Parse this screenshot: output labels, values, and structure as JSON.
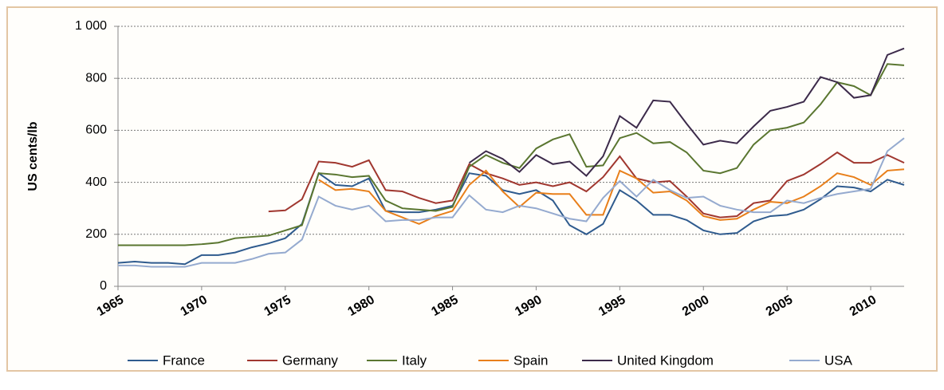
{
  "chart_data": {
    "type": "line",
    "y_label": "US cents/lb",
    "x": [
      1965,
      1966,
      1967,
      1968,
      1969,
      1970,
      1971,
      1972,
      1973,
      1974,
      1975,
      1976,
      1977,
      1978,
      1979,
      1980,
      1981,
      1982,
      1983,
      1984,
      1985,
      1986,
      1987,
      1988,
      1989,
      1990,
      1991,
      1992,
      1993,
      1994,
      1995,
      1996,
      1997,
      1998,
      1999,
      2000,
      2001,
      2002,
      2003,
      2004,
      2005,
      2006,
      2007,
      2008,
      2009,
      2010,
      2011,
      2012
    ],
    "xlim": [
      1965,
      2012
    ],
    "xticks": [
      1965,
      1970,
      1975,
      1980,
      1985,
      1990,
      1995,
      2000,
      2005,
      2010
    ],
    "ylim": [
      0,
      1000
    ],
    "yticks": [
      0,
      200,
      400,
      600,
      800,
      {
        "value": 1000,
        "label": "1 000"
      }
    ],
    "grid": true,
    "legend": "bottom",
    "series": [
      {
        "name": "France",
        "color": "#2f5b8e",
        "values": [
          90,
          95,
          90,
          90,
          85,
          120,
          120,
          130,
          150,
          165,
          185,
          240,
          435,
          390,
          385,
          415,
          290,
          285,
          285,
          295,
          310,
          435,
          425,
          370,
          355,
          370,
          330,
          235,
          200,
          240,
          370,
          330,
          275,
          275,
          255,
          215,
          200,
          205,
          250,
          270,
          275,
          295,
          335,
          385,
          380,
          365,
          410,
          390
        ]
      },
      {
        "name": "Germany",
        "color": "#a0372f",
        "values": [
          null,
          null,
          null,
          null,
          null,
          null,
          null,
          null,
          null,
          288,
          292,
          335,
          480,
          475,
          460,
          485,
          370,
          365,
          340,
          320,
          330,
          470,
          435,
          415,
          390,
          400,
          385,
          400,
          365,
          420,
          500,
          415,
          400,
          405,
          345,
          280,
          265,
          270,
          320,
          330,
          405,
          430,
          470,
          515,
          475,
          475,
          505,
          475
        ]
      },
      {
        "name": "Italy",
        "color": "#5a7630",
        "values": [
          158,
          158,
          158,
          158,
          158,
          162,
          168,
          185,
          190,
          195,
          215,
          235,
          435,
          430,
          420,
          425,
          330,
          300,
          295,
          290,
          305,
          460,
          505,
          475,
          455,
          530,
          565,
          585,
          460,
          465,
          570,
          590,
          550,
          555,
          515,
          445,
          435,
          455,
          545,
          600,
          610,
          630,
          700,
          785,
          770,
          735,
          855,
          850
        ]
      },
      {
        "name": "Spain",
        "color": "#e87f1a",
        "values": [
          null,
          null,
          null,
          null,
          null,
          null,
          null,
          null,
          null,
          null,
          null,
          null,
          410,
          370,
          375,
          365,
          290,
          265,
          240,
          270,
          290,
          390,
          445,
          365,
          305,
          360,
          355,
          355,
          275,
          275,
          445,
          415,
          360,
          365,
          330,
          270,
          255,
          260,
          295,
          325,
          320,
          345,
          385,
          435,
          420,
          390,
          445,
          450
        ]
      },
      {
        "name": "United Kingdom",
        "color": "#3c2a4a",
        "values": [
          null,
          null,
          null,
          null,
          null,
          null,
          null,
          null,
          null,
          null,
          null,
          null,
          null,
          null,
          null,
          null,
          null,
          null,
          null,
          null,
          null,
          475,
          520,
          490,
          440,
          505,
          470,
          480,
          425,
          500,
          655,
          610,
          715,
          710,
          625,
          545,
          560,
          550,
          615,
          675,
          690,
          710,
          805,
          785,
          725,
          735,
          890,
          915
        ]
      },
      {
        "name": "USA",
        "color": "#95aacf",
        "values": [
          80,
          80,
          75,
          75,
          75,
          90,
          90,
          90,
          105,
          125,
          130,
          180,
          345,
          310,
          295,
          310,
          250,
          255,
          255,
          265,
          265,
          350,
          295,
          285,
          310,
          300,
          280,
          260,
          250,
          340,
          405,
          345,
          410,
          370,
          340,
          345,
          310,
          295,
          285,
          285,
          330,
          320,
          340,
          355,
          365,
          375,
          520,
          570
        ]
      }
    ]
  }
}
